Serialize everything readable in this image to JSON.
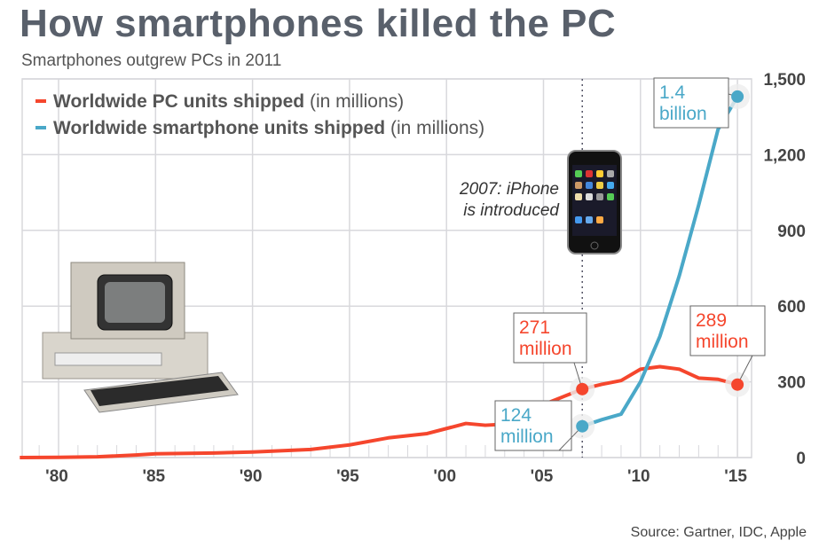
{
  "title": "How smartphones killed the PC",
  "subtitle": "Smartphones outgrew PCs in 2011",
  "source": "Source: Gartner, IDC, Apple",
  "colors": {
    "pc": "#f5462d",
    "phone": "#4aa8c8",
    "grid": "#d8d8dc"
  },
  "chart_data": {
    "type": "line",
    "title": "How smartphones killed the PC",
    "xlabel": "",
    "ylabel": "",
    "xlim": [
      1978,
      2016
    ],
    "ylim": [
      0,
      1500
    ],
    "grid": true,
    "legend_position": "top-left",
    "x_ticks": [
      {
        "value": 1980,
        "label": "'80"
      },
      {
        "value": 1985,
        "label": "'85"
      },
      {
        "value": 1990,
        "label": "'90"
      },
      {
        "value": 1995,
        "label": "'95"
      },
      {
        "value": 2000,
        "label": "'00"
      },
      {
        "value": 2005,
        "label": "'05"
      },
      {
        "value": 2010,
        "label": "'10"
      },
      {
        "value": 2015,
        "label": "'15"
      }
    ],
    "y_ticks": [
      {
        "value": 0,
        "label": "0"
      },
      {
        "value": 300,
        "label": "300"
      },
      {
        "value": 600,
        "label": "600"
      },
      {
        "value": 900,
        "label": "900"
      },
      {
        "value": 1200,
        "label": "1,200"
      },
      {
        "value": 1500,
        "label": "1,500"
      }
    ],
    "series": [
      {
        "name": "Worldwide PC units shipped",
        "unit": "(in millions)",
        "color": "#f5462d",
        "x": [
          1978,
          1980,
          1982,
          1984,
          1985,
          1988,
          1990,
          1993,
          1995,
          1997,
          1999,
          2001,
          2002,
          2003,
          2005,
          2007,
          2008,
          2009,
          2010,
          2011,
          2012,
          2013,
          2014,
          2015
        ],
        "y": [
          0,
          1,
          3,
          10,
          15,
          18,
          22,
          32,
          50,
          78,
          95,
          135,
          128,
          132,
          210,
          271,
          290,
          305,
          350,
          360,
          350,
          315,
          310,
          289
        ]
      },
      {
        "name": "Worldwide smartphone units shipped",
        "unit": "(in millions)",
        "color": "#4aa8c8",
        "x": [
          2007,
          2008,
          2009,
          2010,
          2011,
          2012,
          2013,
          2014,
          2015
        ],
        "y": [
          124,
          150,
          172,
          300,
          480,
          720,
          1000,
          1300,
          1430
        ]
      }
    ],
    "annotations": [
      {
        "x": 2007,
        "y": 271,
        "series": 0,
        "line1": "271",
        "line2": "million"
      },
      {
        "x": 2015,
        "y": 289,
        "series": 0,
        "line1": "289",
        "line2": "million"
      },
      {
        "x": 2007,
        "y": 124,
        "series": 1,
        "line1": "124",
        "line2": "million"
      },
      {
        "x": 2015,
        "y": 1430,
        "series": 1,
        "line1": "1.4",
        "line2": "billion"
      }
    ],
    "event": {
      "x": 2007,
      "line1": "2007: iPhone",
      "line2": "is introduced"
    }
  }
}
